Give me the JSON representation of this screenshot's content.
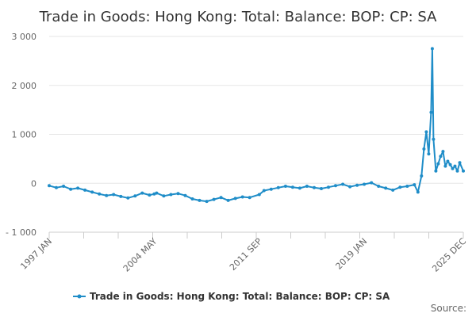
{
  "chart_data": {
    "type": "line",
    "title": "Trade in Goods: Hong Kong: Total: Balance: BOP: CP: SA",
    "xlabel": "",
    "ylabel": "",
    "ylim": [
      -1000,
      3000
    ],
    "y_ticks": [
      -1000,
      0,
      1000,
      2000,
      3000
    ],
    "y_tick_labels": [
      "- 1 000",
      "0",
      "1 000",
      "2 000",
      "3 000"
    ],
    "x_range": [
      "1997-01",
      "2025-12"
    ],
    "x_tick_labels": [
      {
        "label": "1997 JAN",
        "date": "1997-01"
      },
      {
        "label": "2004 MAY",
        "date": "2004-05"
      },
      {
        "label": "2011 SEP",
        "date": "2011-09"
      },
      {
        "label": "2019 JAN",
        "date": "2019-01"
      },
      {
        "label": "2025 DEC",
        "date": "2025-12"
      }
    ],
    "grid": true,
    "legend_position": "bottom-center",
    "series": [
      {
        "name": "Trade in Goods: Hong Kong: Total: Balance: BOP: CP: SA",
        "color": "#1f8dc8",
        "points": [
          [
            "1997-01",
            -50
          ],
          [
            "1997-07",
            -90
          ],
          [
            "1998-01",
            -60
          ],
          [
            "1998-07",
            -120
          ],
          [
            "1999-01",
            -100
          ],
          [
            "1999-07",
            -140
          ],
          [
            "2000-01",
            -180
          ],
          [
            "2000-07",
            -220
          ],
          [
            "2001-01",
            -250
          ],
          [
            "2001-07",
            -230
          ],
          [
            "2002-01",
            -270
          ],
          [
            "2002-07",
            -300
          ],
          [
            "2003-01",
            -260
          ],
          [
            "2003-07",
            -200
          ],
          [
            "2004-01",
            -240
          ],
          [
            "2004-05",
            -220
          ],
          [
            "2004-07",
            -200
          ],
          [
            "2005-01",
            -260
          ],
          [
            "2005-07",
            -230
          ],
          [
            "2006-01",
            -210
          ],
          [
            "2006-07",
            -250
          ],
          [
            "2007-01",
            -320
          ],
          [
            "2007-07",
            -350
          ],
          [
            "2008-01",
            -370
          ],
          [
            "2008-07",
            -330
          ],
          [
            "2009-01",
            -290
          ],
          [
            "2009-07",
            -350
          ],
          [
            "2010-01",
            -310
          ],
          [
            "2010-07",
            -280
          ],
          [
            "2011-01",
            -290
          ],
          [
            "2011-09",
            -230
          ],
          [
            "2012-01",
            -150
          ],
          [
            "2012-07",
            -120
          ],
          [
            "2013-01",
            -90
          ],
          [
            "2013-07",
            -60
          ],
          [
            "2014-01",
            -80
          ],
          [
            "2014-07",
            -100
          ],
          [
            "2015-01",
            -60
          ],
          [
            "2015-07",
            -90
          ],
          [
            "2016-01",
            -110
          ],
          [
            "2016-07",
            -80
          ],
          [
            "2017-01",
            -50
          ],
          [
            "2017-07",
            -20
          ],
          [
            "2018-01",
            -70
          ],
          [
            "2018-07",
            -40
          ],
          [
            "2019-01",
            -20
          ],
          [
            "2019-07",
            10
          ],
          [
            "2020-01",
            -60
          ],
          [
            "2020-07",
            -100
          ],
          [
            "2021-01",
            -140
          ],
          [
            "2021-07",
            -80
          ],
          [
            "2022-01",
            -60
          ],
          [
            "2022-07",
            -30
          ],
          [
            "2022-10",
            -180
          ],
          [
            "2023-01",
            150
          ],
          [
            "2023-03",
            700
          ],
          [
            "2023-05",
            1050
          ],
          [
            "2023-07",
            600
          ],
          [
            "2023-09",
            1450
          ],
          [
            "2023-10",
            2750
          ],
          [
            "2023-11",
            900
          ],
          [
            "2024-01",
            250
          ],
          [
            "2024-03",
            400
          ],
          [
            "2024-05",
            550
          ],
          [
            "2024-07",
            650
          ],
          [
            "2024-09",
            350
          ],
          [
            "2024-11",
            450
          ],
          [
            "2025-01",
            380
          ],
          [
            "2025-03",
            300
          ],
          [
            "2025-05",
            350
          ],
          [
            "2025-07",
            250
          ],
          [
            "2025-09",
            420
          ],
          [
            "2025-12",
            250
          ]
        ]
      }
    ],
    "credits": "Source:"
  }
}
